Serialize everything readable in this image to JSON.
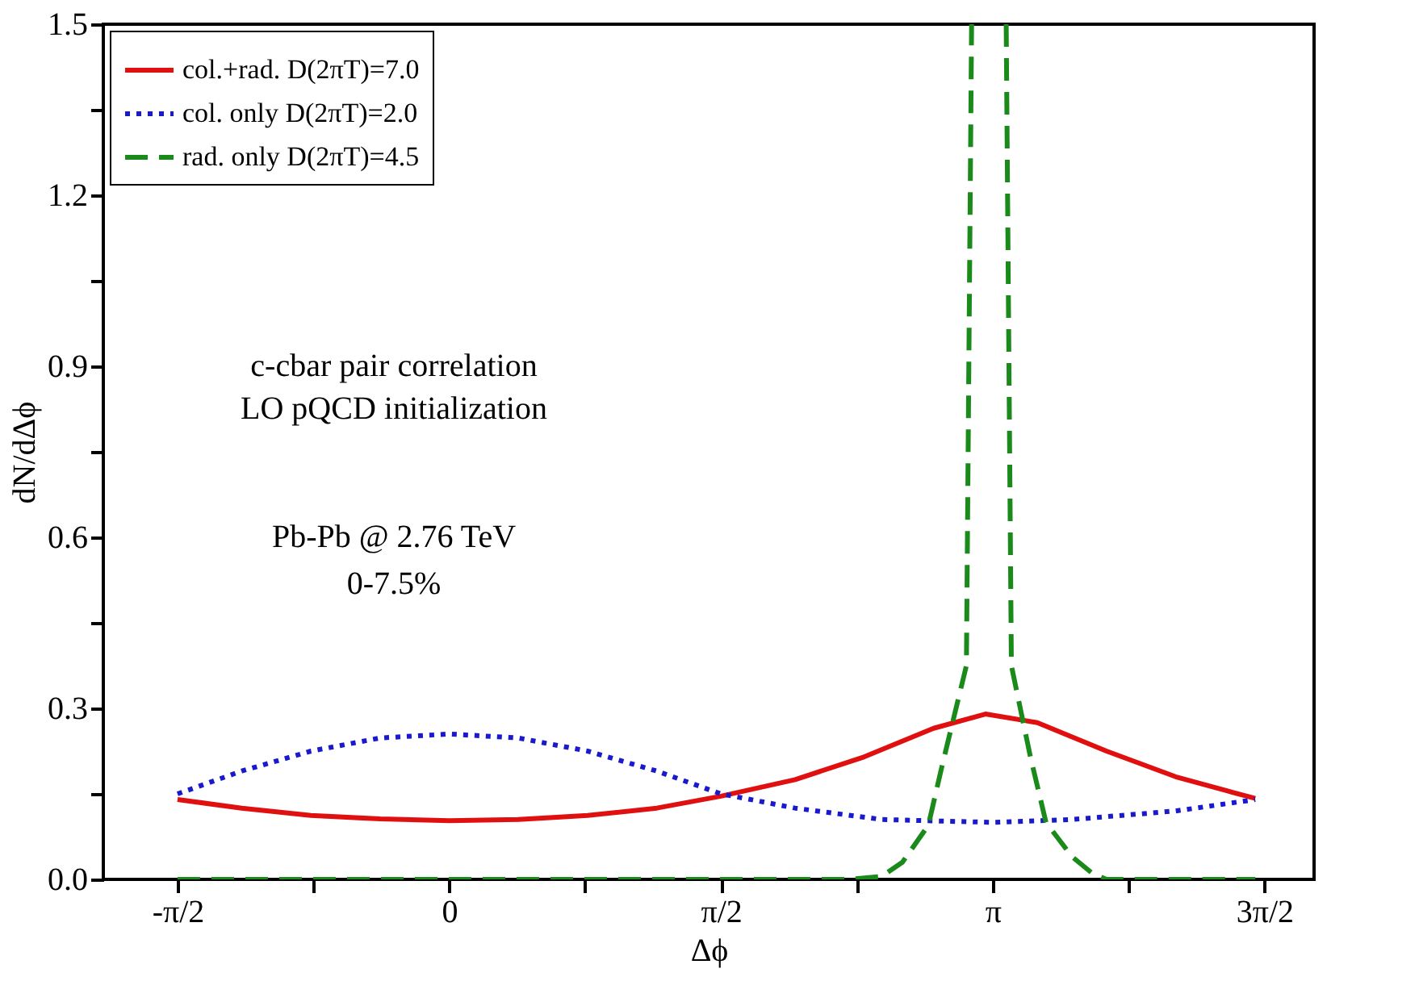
{
  "chart_data": {
    "type": "line",
    "xlabel": "Δϕ",
    "ylabel": "dN/dΔϕ",
    "xlim": [
      -2,
      5
    ],
    "ylim": [
      0,
      1.5
    ],
    "xticks": [
      {
        "value": -1.5708,
        "label": "-π/2"
      },
      {
        "value": -0.7854,
        "label": null
      },
      {
        "value": 0,
        "label": "0"
      },
      {
        "value": 0.7854,
        "label": null
      },
      {
        "value": 1.5708,
        "label": "π/2"
      },
      {
        "value": 2.3562,
        "label": null
      },
      {
        "value": 3.1416,
        "label": "π"
      },
      {
        "value": 3.927,
        "label": null
      },
      {
        "value": 4.7124,
        "label": "3π/2"
      }
    ],
    "yticks": [
      {
        "value": 0,
        "label": "0.0"
      },
      {
        "value": 0.15,
        "label": null
      },
      0.3,
      {
        "value": 0.45,
        "label": null
      },
      0.6,
      {
        "value": 0.75,
        "label": null
      },
      0.9,
      {
        "value": 1.05,
        "label": null
      },
      1.2,
      {
        "value": 1.35,
        "label": null
      },
      1.5
    ],
    "grid": false,
    "legend": "top left",
    "marker": "none",
    "annotations": [
      "c-cbar pair correlation",
      "LO pQCD initialization",
      "Pb-Pb @ 2.76 TeV",
      "0-7.5%"
    ],
    "series": [
      {
        "name": "col.+rad. D(2πT)=7.0",
        "color": "#e01010",
        "line_style": "solid",
        "x": [
          -1.571,
          -1.2,
          -0.8,
          -0.4,
          0,
          0.4,
          0.8,
          1.2,
          1.571,
          2.0,
          2.4,
          2.8,
          3.1,
          3.4,
          3.8,
          4.2,
          4.5,
          4.66
        ],
        "values": [
          0.14,
          0.125,
          0.112,
          0.106,
          0.103,
          0.105,
          0.112,
          0.125,
          0.146,
          0.175,
          0.215,
          0.265,
          0.29,
          0.275,
          0.225,
          0.18,
          0.155,
          0.142
        ]
      },
      {
        "name": "col. only D(2πT)=2.0",
        "color": "#1a1acc",
        "line_style": "dotted",
        "x": [
          -1.571,
          -1.2,
          -0.8,
          -0.4,
          0,
          0.4,
          0.8,
          1.2,
          1.571,
          2.0,
          2.5,
          3.14,
          3.6,
          4.2,
          4.66
        ],
        "values": [
          0.15,
          0.19,
          0.225,
          0.248,
          0.255,
          0.248,
          0.225,
          0.19,
          0.15,
          0.125,
          0.105,
          0.1,
          0.105,
          0.12,
          0.14
        ]
      },
      {
        "name": "rad. only D(2πT)=4.5",
        "color": "#1a8a1a",
        "line_style": "dashed",
        "x": [
          -1.571,
          2.3,
          2.5,
          2.62,
          2.77,
          2.85,
          2.99,
          3.02,
          3.12,
          3.22,
          3.25,
          3.36,
          3.45,
          3.6,
          3.72,
          3.8,
          4.66
        ],
        "values": [
          0,
          0,
          0.005,
          0.03,
          0.095,
          0.2,
          0.375,
          1.5,
          null,
          1.5,
          0.375,
          0.215,
          0.1,
          0.04,
          0.01,
          0,
          0
        ]
      }
    ]
  }
}
